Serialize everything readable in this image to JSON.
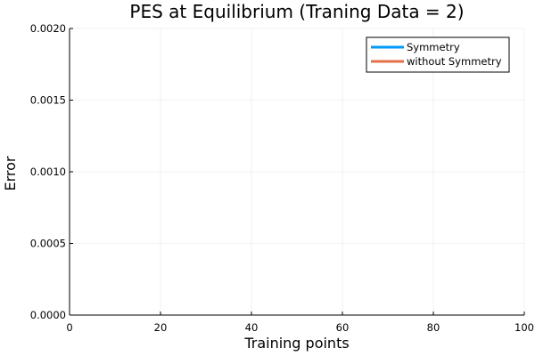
{
  "chart_data": {
    "type": "line",
    "title": "PES at Equilibrium (Traning Data = 2)",
    "xlabel": "Training points",
    "ylabel": "Error",
    "xlim": [
      0,
      100
    ],
    "ylim": [
      0.0,
      0.002
    ],
    "xticks": [
      0,
      20,
      40,
      60,
      80,
      100
    ],
    "xtick_labels": [
      "0",
      "20",
      "40",
      "60",
      "80",
      "100"
    ],
    "yticks": [
      0.0,
      0.0005,
      0.001,
      0.0015,
      0.002
    ],
    "ytick_labels": [
      "0.0000",
      "0.0005",
      "0.0010",
      "0.0015",
      "0.0020"
    ],
    "grid": true,
    "legend_position": "top-right",
    "series": [
      {
        "name": "Symmetry",
        "color": "#009AFA",
        "x": [],
        "y": []
      },
      {
        "name": "without Symmetry",
        "color": "#E26F46",
        "x": [],
        "y": []
      }
    ]
  }
}
